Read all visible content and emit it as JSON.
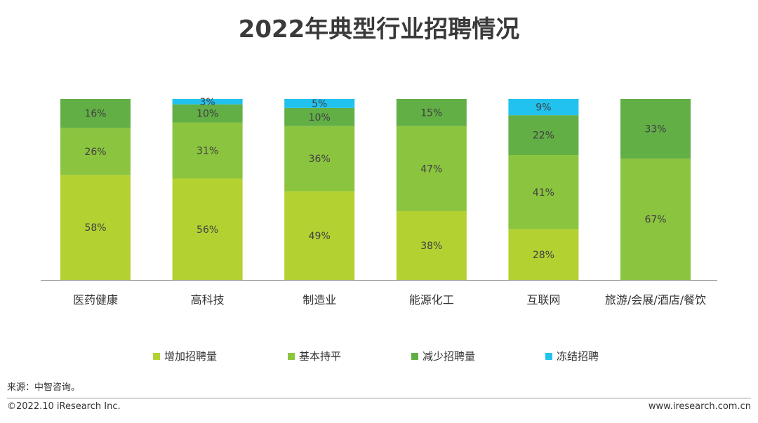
{
  "title": "2022年典型行业招聘情况",
  "source": "来源：中智咨询。",
  "footer": {
    "copyright": "©2022.10 iResearch Inc.",
    "website": "www.iresearch.com.cn"
  },
  "colors": {
    "increase": "#B3D232",
    "flat": "#8BC43F",
    "decrease": "#62AF46",
    "freeze": "#21C2EE",
    "axis": "#888888",
    "text": "#404040"
  },
  "chart_data": {
    "type": "bar",
    "stacked": true,
    "categories": [
      "医药健康",
      "高科技",
      "制造业",
      "能源化工",
      "互联网",
      "旅游/会展/酒店/餐饮"
    ],
    "series": [
      {
        "name": "增加招聘量",
        "values": [
          58,
          56,
          49,
          38,
          28,
          0
        ],
        "labels": [
          "58%",
          "56%",
          "49%",
          "38%",
          "28%",
          ""
        ]
      },
      {
        "name": "基本持平",
        "values": [
          26,
          31,
          36,
          47,
          41,
          67
        ],
        "labels": [
          "26%",
          "31%",
          "36%",
          "47%",
          "41%",
          "67%"
        ]
      },
      {
        "name": "减少招聘量",
        "values": [
          16,
          10,
          10,
          15,
          22,
          33
        ],
        "labels": [
          "16%",
          "10%",
          "10%",
          "15%",
          "22%",
          "33%"
        ]
      },
      {
        "name": "冻结招聘",
        "values": [
          0,
          3,
          5,
          0,
          9,
          0
        ],
        "labels": [
          "",
          "3%",
          "5%",
          "",
          "9%",
          ""
        ]
      }
    ],
    "ylim": [
      0,
      100
    ],
    "legend_position": "bottom",
    "grid": false
  }
}
